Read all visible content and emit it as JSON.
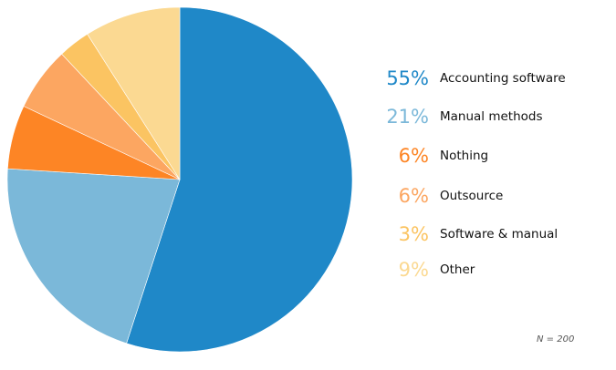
{
  "chart_data": {
    "type": "pie",
    "categories": [
      "Accounting software",
      "Manual methods",
      "Nothing",
      "Outsource",
      "Software & manual",
      "Other"
    ],
    "values": [
      55,
      21,
      6,
      6,
      3,
      9
    ],
    "value_labels": [
      "55%",
      "21%",
      "6%",
      "6%",
      "3%",
      "9%"
    ],
    "colors": [
      "#1f88c8",
      "#7bb8d9",
      "#fd8525",
      "#fca661",
      "#fbc462",
      "#fbd992"
    ],
    "start_angle_deg": 0,
    "direction": "clockwise",
    "legend_position": "right",
    "note": "N = 200"
  }
}
